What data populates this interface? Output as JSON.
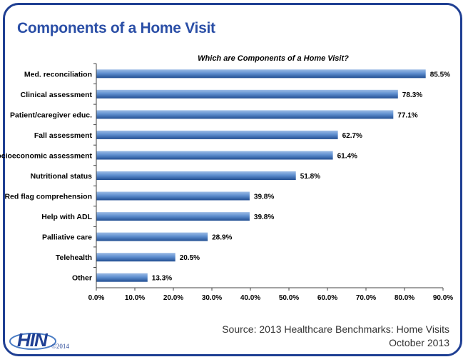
{
  "header": {
    "title": "Components of a Home Visit"
  },
  "source": {
    "line1": "Source: 2013 Healthcare Benchmarks: Home Visits",
    "line2": "October 2013"
  },
  "logo": {
    "mark": "HIN",
    "copyright": "©2014"
  },
  "colors": {
    "frame": "#1f3f93",
    "title": "#2a4ea6",
    "bar_light": "#8fb1e0",
    "bar_dark": "#2b5a9c"
  },
  "chart_data": {
    "type": "bar",
    "orientation": "horizontal",
    "title": "Which are Components of a Home Visit?",
    "categories": [
      "Med. reconciliation",
      "Clinical assessment",
      "Patient/caregiver educ.",
      "Fall assessment",
      "Socioeconomic assessment",
      "Nutritional status",
      "Red flag comprehension",
      "Help with ADL",
      "Palliative care",
      "Telehealth",
      "Other"
    ],
    "values": [
      85.5,
      78.3,
      77.1,
      62.7,
      61.4,
      51.8,
      39.8,
      39.8,
      28.9,
      20.5,
      13.3
    ],
    "value_labels": [
      "85.5%",
      "78.3%",
      "77.1%",
      "62.7%",
      "61.4%",
      "51.8%",
      "39.8%",
      "39.8%",
      "28.9%",
      "20.5%",
      "13.3%"
    ],
    "xlim": [
      0,
      90
    ],
    "xticks": [
      "0.0%",
      "10.0%",
      "20.0%",
      "30.0%",
      "40.0%",
      "50.0%",
      "60.0%",
      "70.0%",
      "80.0%",
      "90.0%"
    ],
    "grid": false,
    "legend": "none"
  }
}
